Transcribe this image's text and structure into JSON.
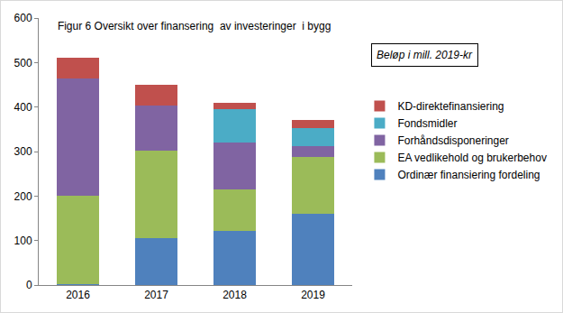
{
  "chart_data": {
    "type": "bar",
    "title": "Figur 6 Oversikt over finansering  av investeringer  i bygg",
    "annotation": "Beløp i mill. 2019-kr",
    "categories": [
      "2016",
      "2017",
      "2018",
      "2019"
    ],
    "series": [
      {
        "name": "Ordinær finansiering fordeling",
        "color": "#4f81bd",
        "values": [
          2,
          105,
          122,
          160
        ]
      },
      {
        "name": "EA vedlikehold og brukerbehov",
        "color": "#9bbb59",
        "values": [
          198,
          198,
          93,
          128
        ]
      },
      {
        "name": "Forhåndsdisponeringer",
        "color": "#8064a2",
        "values": [
          265,
          100,
          105,
          25
        ]
      },
      {
        "name": "Fondsmidler",
        "color": "#4bacc6",
        "values": [
          0,
          0,
          75,
          40
        ]
      },
      {
        "name": "KD-direktefinansiering",
        "color": "#c0504d",
        "values": [
          45,
          47,
          15,
          17
        ]
      }
    ],
    "ylim": [
      0,
      600
    ],
    "yticks": [
      0,
      100,
      200,
      300,
      400,
      500,
      600
    ],
    "stacked": true,
    "grid": false,
    "legend": "right"
  }
}
